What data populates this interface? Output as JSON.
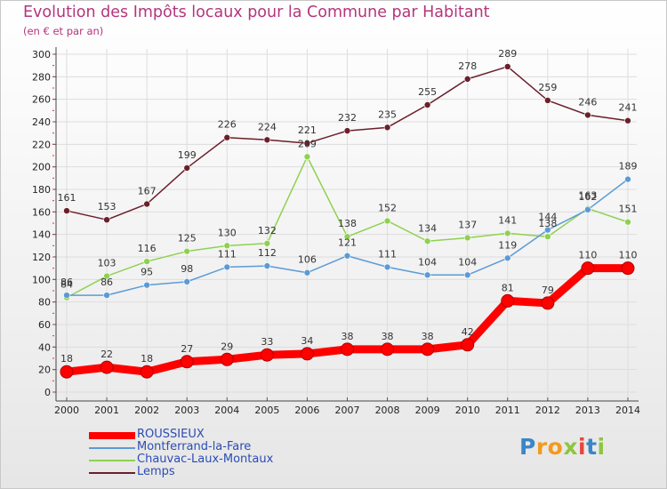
{
  "title": "Evolution des Impôts locaux pour la Commune par Habitant",
  "subtitle": "(en € et par an)",
  "logo": "Proxiti",
  "chart_data": {
    "type": "line",
    "x": [
      "2000",
      "2001",
      "2002",
      "2003",
      "2004",
      "2005",
      "2006",
      "2007",
      "2008",
      "2009",
      "2010",
      "2011",
      "2012",
      "2013",
      "2014"
    ],
    "ylim": [
      0,
      300
    ],
    "yticks": [
      0,
      20,
      40,
      60,
      80,
      100,
      120,
      140,
      160,
      180,
      200,
      220,
      240,
      260,
      280,
      300
    ],
    "grid": true,
    "legend_position": "bottom-left",
    "series": [
      {
        "name": "ROUSSIEUX",
        "color": "#ff0000",
        "values": [
          18,
          22,
          18,
          27,
          29,
          33,
          34,
          38,
          38,
          38,
          42,
          81,
          79,
          110,
          110
        ]
      },
      {
        "name": "Montferrand-la-Fare",
        "color": "#5b9bd5",
        "values": [
          86,
          86,
          95,
          98,
          111,
          112,
          106,
          121,
          111,
          104,
          104,
          119,
          144,
          162,
          189
        ]
      },
      {
        "name": "Chauvac-Laux-Montaux",
        "color": "#8fd14f",
        "values": [
          84,
          103,
          116,
          125,
          130,
          132,
          209,
          138,
          152,
          134,
          137,
          141,
          138,
          163,
          151
        ]
      },
      {
        "name": "Lemps",
        "color": "#6b1f2a",
        "values": [
          161,
          153,
          167,
          199,
          226,
          224,
          221,
          232,
          235,
          255,
          278,
          289,
          259,
          246,
          241
        ]
      }
    ]
  }
}
